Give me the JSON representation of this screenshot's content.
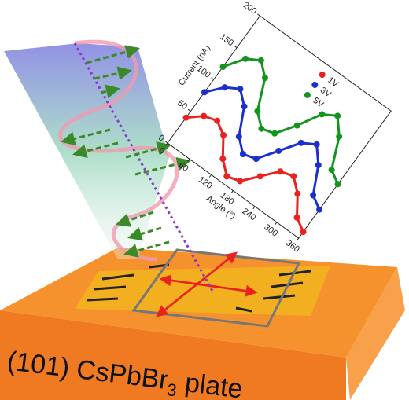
{
  "chart_data": {
    "type": "line",
    "x_label": "Angle (°)",
    "y_label": "Current (nA)",
    "x": [
      0,
      30,
      60,
      90,
      120,
      150,
      180,
      210,
      240,
      270,
      300,
      330,
      360
    ],
    "series": [
      {
        "name": "1V",
        "color": "#e8221e",
        "values": [
          40,
          55,
          60,
          50,
          25,
          10,
          15,
          35,
          55,
          60,
          45,
          20,
          10
        ]
      },
      {
        "name": "3V",
        "color": "#1a2fcc",
        "values": [
          80,
          100,
          110,
          95,
          60,
          45,
          50,
          75,
          100,
          110,
          90,
          55,
          45
        ]
      },
      {
        "name": "5V",
        "color": "#12941f",
        "values": [
          120,
          145,
          155,
          140,
          100,
          85,
          90,
          115,
          145,
          155,
          135,
          95,
          85
        ]
      }
    ],
    "xlim": [
      0,
      360
    ],
    "xticks": [
      0,
      60,
      120,
      180,
      240,
      300,
      360
    ],
    "ylim": [
      0,
      200
    ],
    "yticks": [
      0,
      50,
      100,
      150,
      200
    ]
  },
  "plate_label": {
    "text": "(101) CsPbBr",
    "subscript": "3",
    "suffix": " plate"
  }
}
